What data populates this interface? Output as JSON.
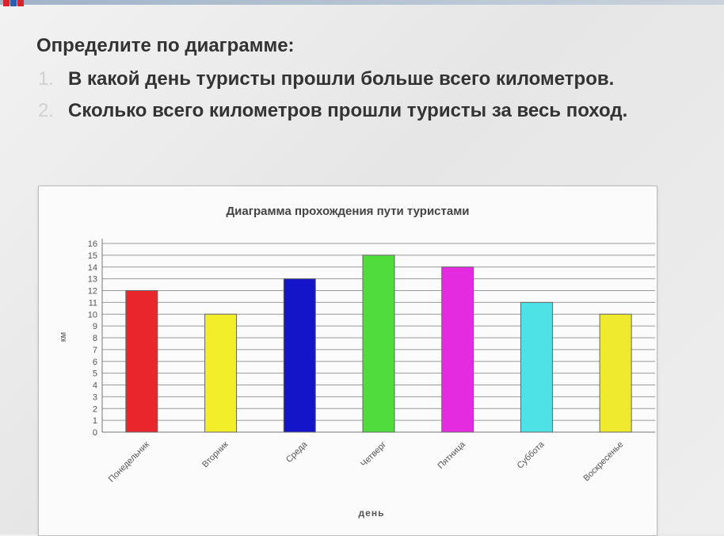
{
  "task": {
    "heading": "Определите по диаграмме:",
    "items": [
      {
        "num": "1.",
        "text": "В какой день туристы прошли больше всего километров."
      },
      {
        "num": "2.",
        "text": "Сколько всего километров прошли туристы за весь поход."
      }
    ]
  },
  "chart_data": {
    "type": "bar",
    "title": "Диаграмма прохождения пути туристами",
    "xlabel": "день",
    "ylabel": "км",
    "ylim": [
      0,
      16
    ],
    "grid": true,
    "categories": [
      "Понедельник",
      "Вторник",
      "Среда",
      "Четверг",
      "Пятница",
      "Суббота",
      "Воскресенье"
    ],
    "values": [
      12,
      10,
      13,
      15,
      14,
      11,
      10
    ],
    "colors": [
      "#e8262b",
      "#f2ee2a",
      "#1414c8",
      "#4fdc3c",
      "#e52be0",
      "#4ee2e6",
      "#f0ea2e"
    ],
    "yticks": [
      0,
      1,
      2,
      3,
      4,
      5,
      6,
      7,
      8,
      9,
      10,
      11,
      12,
      13,
      14,
      15,
      16
    ]
  }
}
